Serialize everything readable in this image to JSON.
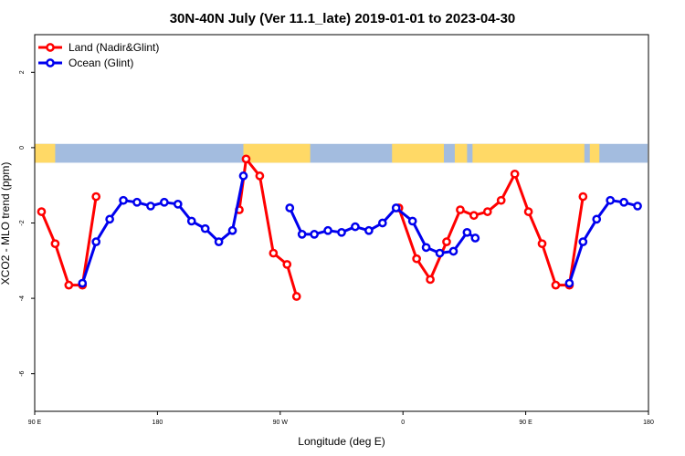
{
  "chart_data": {
    "type": "line",
    "title": "30N-40N July (Ver 11.1_late)   2019-01-01 to 2023-04-30",
    "xlabel": "Longitude (deg E)",
    "ylabel": "XCO2 - MLO trend (ppm)",
    "xlim": [
      90,
      540
    ],
    "ylim": [
      -7.0,
      3.0
    ],
    "x_ticks": [
      {
        "value": 90,
        "label": "90 E"
      },
      {
        "value": 180,
        "label": "180"
      },
      {
        "value": 270,
        "label": "90 W"
      },
      {
        "value": 360,
        "label": "0"
      },
      {
        "value": 450,
        "label": "90 E"
      },
      {
        "value": 540,
        "label": "180"
      }
    ],
    "y_ticks": [
      {
        "value": 2,
        "label": "2"
      },
      {
        "value": 0,
        "label": "0"
      },
      {
        "value": -2,
        "label": "-2"
      },
      {
        "value": -4,
        "label": "-4"
      },
      {
        "value": -6,
        "label": "-6"
      }
    ],
    "legend_position": "top-left",
    "land_strip": {
      "y_top": 0.1,
      "y_bottom": -0.4,
      "land_color": "#ffd966",
      "ocean_color": "#a3bcdf"
    },
    "series": [
      {
        "name": "Land (Nadir&Glint)",
        "color": "#ff0000",
        "segments": [
          [
            [
              95,
              -1.7
            ],
            [
              105,
              -2.55
            ],
            [
              115,
              -3.65
            ],
            [
              125,
              -3.65
            ],
            [
              135,
              -1.3
            ]
          ],
          [
            [
              240,
              -1.65
            ],
            [
              245,
              -0.3
            ],
            [
              255,
              -0.75
            ],
            [
              265,
              -2.8
            ],
            [
              275,
              -3.1
            ],
            [
              282,
              -3.95
            ]
          ],
          [
            [
              357,
              -1.6
            ],
            [
              370,
              -2.95
            ],
            [
              380,
              -3.5
            ],
            [
              392,
              -2.5
            ],
            [
              402,
              -1.65
            ],
            [
              412,
              -1.8
            ],
            [
              422,
              -1.7
            ],
            [
              432,
              -1.4
            ],
            [
              442,
              -0.7
            ],
            [
              452,
              -1.7
            ],
            [
              462,
              -2.55
            ],
            [
              472,
              -3.65
            ],
            [
              482,
              -3.65
            ],
            [
              492,
              -1.3
            ]
          ]
        ]
      },
      {
        "name": "Ocean (Glint)",
        "color": "#0000ee",
        "segments": [
          [
            [
              125,
              -3.6
            ],
            [
              135,
              -2.5
            ],
            [
              145,
              -1.9
            ],
            [
              155,
              -1.4
            ],
            [
              165,
              -1.45
            ],
            [
              175,
              -1.55
            ],
            [
              185,
              -1.45
            ],
            [
              195,
              -1.5
            ],
            [
              205,
              -1.95
            ],
            [
              215,
              -2.15
            ],
            [
              225,
              -2.5
            ],
            [
              235,
              -2.2
            ],
            [
              243,
              -0.75
            ]
          ],
          [
            [
              277,
              -1.6
            ],
            [
              286,
              -2.3
            ],
            [
              295,
              -2.3
            ],
            [
              305,
              -2.2
            ],
            [
              315,
              -2.25
            ],
            [
              325,
              -2.1
            ],
            [
              335,
              -2.2
            ],
            [
              345,
              -2.0
            ],
            [
              355,
              -1.6
            ],
            [
              367,
              -1.95
            ],
            [
              377,
              -2.65
            ],
            [
              387,
              -2.8
            ],
            [
              397,
              -2.75
            ],
            [
              407,
              -2.25
            ],
            [
              413,
              -2.4
            ]
          ],
          [
            [
              482,
              -3.6
            ],
            [
              492,
              -2.5
            ],
            [
              502,
              -1.9
            ],
            [
              512,
              -1.4
            ],
            [
              522,
              -1.45
            ],
            [
              532,
              -1.55
            ]
          ]
        ]
      }
    ]
  }
}
